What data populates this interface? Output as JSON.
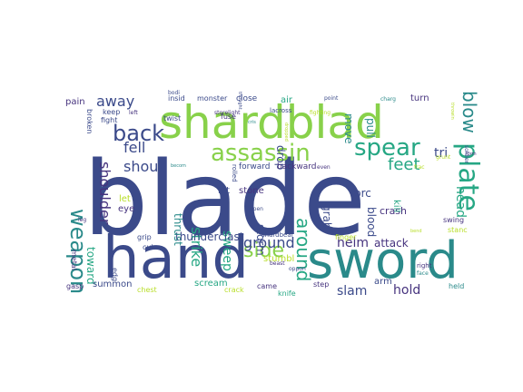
{
  "word_cloud": {
    "palette": [
      "#3b4a8a",
      "#2a8a8a",
      "#88d14a",
      "#46337e",
      "#26a784",
      "#b8de29"
    ],
    "words": [
      {
        "text": "blade",
        "color": "#3b4a8a"
      },
      {
        "text": "hand",
        "color": "#3b4a8a"
      },
      {
        "text": "sword",
        "color": "#2a8a8a"
      },
      {
        "text": "shardblad",
        "color": "#88d14a"
      },
      {
        "text": "assassin",
        "color": "#88d14a"
      },
      {
        "text": "spear",
        "color": "#26a784"
      },
      {
        "text": "plate",
        "color": "#26a784"
      },
      {
        "text": "weapon",
        "color": "#2a8a8a"
      },
      {
        "text": "back",
        "color": "#3b4a8a"
      },
      {
        "text": "side",
        "color": "#88d14a"
      },
      {
        "text": "around",
        "color": "#26a784"
      },
      {
        "text": "ground",
        "color": "#3b4a8a"
      },
      {
        "text": "blow",
        "color": "#2a8a8a"
      },
      {
        "text": "feet",
        "color": "#26a784"
      },
      {
        "text": "fell",
        "color": "#3b4a8a"
      },
      {
        "text": "away",
        "color": "#3b4a8a"
      },
      {
        "text": "shoulder",
        "color": "#46337e"
      },
      {
        "text": "strike",
        "color": "#26a784"
      },
      {
        "text": "shout",
        "color": "#3b4a8a"
      },
      {
        "text": "sweep",
        "color": "#26a784"
      },
      {
        "text": "helm",
        "color": "#46337e"
      },
      {
        "text": "slam",
        "color": "#3b4a8a"
      },
      {
        "text": "hold",
        "color": "#46337e"
      },
      {
        "text": "toward",
        "color": "#26a784"
      },
      {
        "text": "thunderclast",
        "color": "#3b4a8a"
      },
      {
        "text": "head",
        "color": "#26a784"
      },
      {
        "text": "tri",
        "color": "#3b4a8a"
      },
      {
        "text": "attack",
        "color": "#46337e"
      },
      {
        "text": "forc",
        "color": "#3b4a8a"
      },
      {
        "text": "move",
        "color": "#2a8a8a"
      },
      {
        "text": "pull",
        "color": "#2a8a8a"
      },
      {
        "text": "drop",
        "color": "#3b4a8a"
      },
      {
        "text": "storm",
        "color": "#3b4a8a"
      },
      {
        "text": "thrust",
        "color": "#2a8a8a"
      },
      {
        "text": "blood",
        "color": "#3b4a8a"
      },
      {
        "text": "grab",
        "color": "#3b4a8a"
      },
      {
        "text": "crash",
        "color": "#46337e"
      },
      {
        "text": "scream",
        "color": "#26a784"
      },
      {
        "text": "stumbl",
        "color": "#b8de29"
      },
      {
        "text": "summon",
        "color": "#3b4a8a"
      },
      {
        "text": "pain",
        "color": "#46337e"
      },
      {
        "text": "let",
        "color": "#b8de29"
      },
      {
        "text": "hit",
        "color": "#3b4a8a"
      },
      {
        "text": "stone",
        "color": "#46337e"
      },
      {
        "text": "eye",
        "color": "#46337e"
      },
      {
        "text": "kill",
        "color": "#26a784"
      },
      {
        "text": "turn",
        "color": "#46337e"
      },
      {
        "text": "arm",
        "color": "#3b4a8a"
      },
      {
        "text": "forward",
        "color": "#3b4a8a"
      },
      {
        "text": "backward",
        "color": "#46337e"
      },
      {
        "text": "air",
        "color": "#26a784"
      },
      {
        "text": "close",
        "color": "#3b4a8a"
      },
      {
        "text": "monster",
        "color": "#3b4a8a"
      },
      {
        "text": "insid",
        "color": "#3b4a8a"
      },
      {
        "text": "fuse",
        "color": "#46337e"
      },
      {
        "text": "twist",
        "color": "#3b4a8a"
      },
      {
        "text": "fight",
        "color": "#3b4a8a"
      },
      {
        "text": "keep",
        "color": "#3b4a8a"
      },
      {
        "text": "broken",
        "color": "#3b4a8a"
      },
      {
        "text": "metal",
        "color": "#46337e"
      },
      {
        "text": "edg",
        "color": "#3b4a8a"
      },
      {
        "text": "gasp",
        "color": "#46337e"
      },
      {
        "text": "chest",
        "color": "#b8de29"
      },
      {
        "text": "cut",
        "color": "#3b4a8a"
      },
      {
        "text": "grip",
        "color": "#3b4a8a"
      },
      {
        "text": "crack",
        "color": "#b8de29"
      },
      {
        "text": "came",
        "color": "#46337e"
      },
      {
        "text": "knife",
        "color": "#26a784"
      },
      {
        "text": "step",
        "color": "#46337e"
      },
      {
        "text": "held",
        "color": "#2a8a8a"
      },
      {
        "text": "swing",
        "color": "#46337e"
      },
      {
        "text": "stanc",
        "color": "#b8de29"
      },
      {
        "text": "finger",
        "color": "#b8de29"
      },
      {
        "text": "shardbear",
        "color": "#3b4a8a"
      },
      {
        "text": "open",
        "color": "#3b4a8a"
      },
      {
        "text": "beast",
        "color": "#46337e"
      },
      {
        "text": "right",
        "color": "#46337e"
      },
      {
        "text": "face",
        "color": "#2a8a8a"
      },
      {
        "text": "lacross",
        "color": "#3b4a8a"
      },
      {
        "text": "point",
        "color": "#3b4a8a"
      },
      {
        "text": "charg",
        "color": "#2a8a8a"
      },
      {
        "text": "thought",
        "color": "#3b4a8a"
      },
      {
        "text": "storelight",
        "color": "#46337e"
      },
      {
        "text": "fighting",
        "color": "#b8de29"
      },
      {
        "text": "soldier",
        "color": "#3b4a8a"
      },
      {
        "text": "even",
        "color": "#46337e"
      },
      {
        "text": "leg",
        "color": "#46337e"
      },
      {
        "text": "left",
        "color": "#46337e"
      },
      {
        "text": "bodi",
        "color": "#3b4a8a"
      },
      {
        "text": "oppon",
        "color": "#3b4a8a"
      },
      {
        "text": "rolled",
        "color": "#3b4a8a"
      },
      {
        "text": "grunt",
        "color": "#b8de29"
      },
      {
        "text": "frac",
        "color": "#b8de29"
      },
      {
        "text": "throwin",
        "color": "#b8de29"
      },
      {
        "text": "form",
        "color": "#46337e"
      },
      {
        "text": "becom",
        "color": "#2a8a8a"
      },
      {
        "text": "bend",
        "color": "#b8de29"
      },
      {
        "text": "cris",
        "color": "#2a8a8a"
      },
      {
        "text": "dropped",
        "color": "#b8de29"
      }
    ]
  }
}
